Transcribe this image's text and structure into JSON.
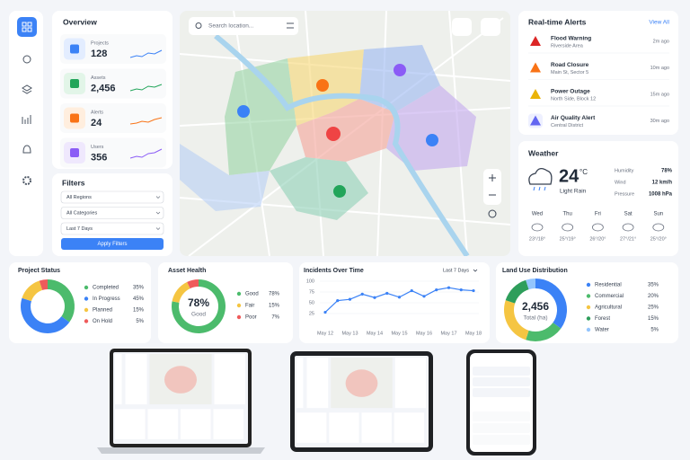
{
  "overview": {
    "title": "Overview",
    "items": [
      {
        "label": "Projects",
        "value": "128"
      },
      {
        "label": "Assets",
        "value": "2,456"
      },
      {
        "label": "Alerts",
        "value": "24"
      },
      {
        "label": "Users",
        "value": "356"
      }
    ]
  },
  "filters": {
    "title": "Filters",
    "selects": [
      "All Regions",
      "All Categories",
      "Last 7 Days"
    ],
    "button": "Apply Filters"
  },
  "map": {
    "search_placeholder": "Search location..."
  },
  "alerts": {
    "title": "Real-time Alerts",
    "view_all": "View All",
    "items": [
      {
        "title": "Flood Warning",
        "location": "Riverside Area",
        "time": "2m ago"
      },
      {
        "title": "Road Closure",
        "location": "Main St, Sector 5",
        "time": "10m ago"
      },
      {
        "title": "Power Outage",
        "location": "North Side, Block 12",
        "time": "15m ago"
      },
      {
        "title": "Air Quality Alert",
        "location": "Central District",
        "time": "30m ago"
      }
    ]
  },
  "weather": {
    "title": "Weather",
    "temperature": "24",
    "unit": "°C",
    "condition": "Light Rain",
    "stats": [
      {
        "label": "Humidity",
        "value": "78%"
      },
      {
        "label": "Wind",
        "value": "12 km/h"
      },
      {
        "label": "Pressure",
        "value": "1008 hPa"
      }
    ],
    "forecast": [
      {
        "day": "Wed",
        "temps": "23°/18°"
      },
      {
        "day": "Thu",
        "temps": "25°/19°"
      },
      {
        "day": "Fri",
        "temps": "26°/20°"
      },
      {
        "day": "Sat",
        "temps": "27°/21°"
      },
      {
        "day": "Sun",
        "temps": "25°/20°"
      }
    ]
  },
  "chart_data": [
    {
      "type": "pie",
      "title": "Project Status",
      "categories": [
        "Completed",
        "In Progress",
        "Planned",
        "On Hold"
      ],
      "values": [
        35,
        45,
        15,
        5
      ],
      "value_labels": [
        "35%",
        "45%",
        "15%",
        "5%"
      ],
      "colors": [
        "#4cbb6c",
        "#3b82f6",
        "#f5c542",
        "#ef5b5b"
      ]
    },
    {
      "type": "pie",
      "title": "Asset Health",
      "center_text": [
        "78%",
        "Good"
      ],
      "categories": [
        "Good",
        "Fair",
        "Poor"
      ],
      "values": [
        78,
        15,
        7
      ],
      "value_labels": [
        "78%",
        "15%",
        "7%"
      ],
      "colors": [
        "#4cbb6c",
        "#f5c542",
        "#ef5b5b"
      ]
    },
    {
      "type": "line",
      "title": "Incidents Over Time",
      "range_selector": "Last 7 Days",
      "categories": [
        "May 12",
        null,
        "May 13",
        null,
        "May 14",
        null,
        "May 15",
        null,
        "May 16",
        null,
        "May 17",
        null,
        "May 18"
      ],
      "values": [
        28,
        55,
        58,
        70,
        62,
        72,
        63,
        78,
        65,
        80,
        85,
        80,
        78
      ],
      "color": "#3b82f6",
      "ylim": [
        0,
        100
      ],
      "yticks": [
        25,
        50,
        75,
        100
      ]
    },
    {
      "type": "pie",
      "title": "Land Use Distribution",
      "center_text": [
        "2,456",
        "Total (ha)"
      ],
      "categories": [
        "Residential",
        "Commercial",
        "Agricultural",
        "Forest",
        "Water"
      ],
      "values": [
        35,
        20,
        25,
        15,
        5
      ],
      "value_labels": [
        "35%",
        "20%",
        "25%",
        "15%",
        "5%"
      ],
      "colors": [
        "#3b82f6",
        "#4cbb6c",
        "#f5c542",
        "#2e9e5b",
        "#93c5fd"
      ]
    }
  ]
}
